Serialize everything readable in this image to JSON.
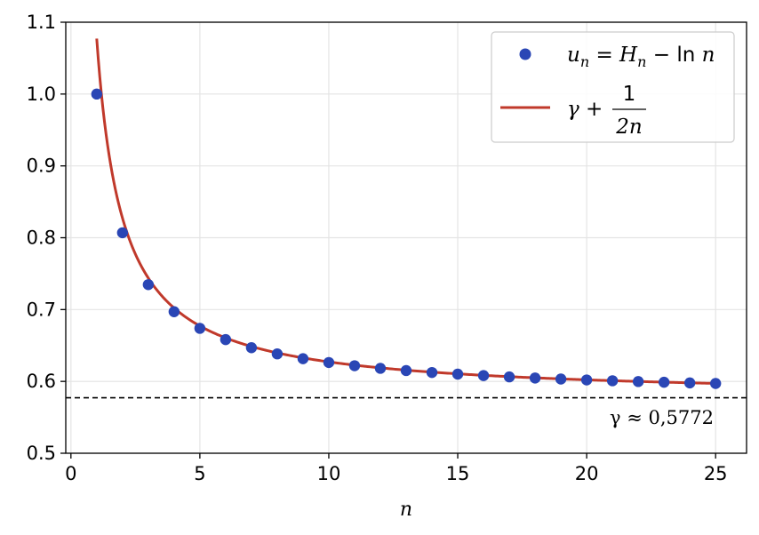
{
  "chart_data": {
    "type": "scatter",
    "xlabel": "n",
    "ylabel": "",
    "xlim": [
      -0.2,
      26.2
    ],
    "ylim": [
      0.5,
      1.1
    ],
    "xticks": [
      0,
      5,
      10,
      15,
      20,
      25
    ],
    "yticks": [
      0.5,
      0.6,
      0.7,
      0.8,
      0.9,
      1.0,
      1.1
    ],
    "xtick_labels": [
      "0",
      "5",
      "10",
      "15",
      "20",
      "25"
    ],
    "ytick_labels": [
      "0.5",
      "0.6",
      "0.7",
      "0.8",
      "0.9",
      "1.0",
      "1.1"
    ],
    "grid": true,
    "legend_position": "top-right",
    "series": [
      {
        "name": "u_n = H_n − ln n",
        "kind": "scatter",
        "color": "#2a46b5",
        "x": [
          1,
          2,
          3,
          4,
          5,
          6,
          7,
          8,
          9,
          10,
          11,
          12,
          13,
          14,
          15,
          16,
          17,
          18,
          19,
          20,
          21,
          22,
          23,
          24,
          25
        ],
        "y": [
          1.0,
          0.8069,
          0.7347,
          0.697,
          0.6739,
          0.6582,
          0.6469,
          0.6383,
          0.6316,
          0.6263,
          0.6218,
          0.6182,
          0.6151,
          0.6124,
          0.6101,
          0.6081,
          0.6063,
          0.6047,
          0.6033,
          0.602,
          0.6009,
          0.5998,
          0.5988,
          0.5979,
          0.5971
        ]
      },
      {
        "name": "γ + 1/(2n)",
        "kind": "line",
        "color": "#c0392b",
        "x_range": [
          1,
          25
        ],
        "formula": "0.5772 + 1/(2n)"
      }
    ],
    "reference_line": {
      "y": 0.5772,
      "style": "dashed",
      "color": "#000000",
      "label": "γ ≈ 0,5772"
    }
  },
  "legend": {
    "scatter_label": {
      "u": "u",
      "n_sub1": "n",
      "eq": " = ",
      "H": "H",
      "n_sub2": "n",
      "minus": " − ",
      "ln": "ln",
      "n": "n"
    },
    "line_label": {
      "gamma": "γ",
      "plus": " + ",
      "num": "1",
      "den": "2n"
    }
  },
  "annotation": {
    "text": "γ ≈ 0,5772"
  }
}
